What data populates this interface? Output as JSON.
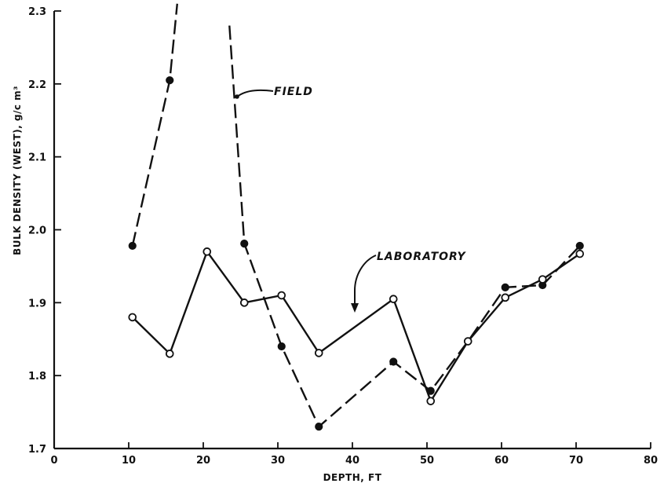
{
  "chart_data": {
    "type": "line",
    "xlabel": "DEPTH, FT",
    "ylabel": "BULK DENSITY (WEST), g/c m³",
    "xlim": [
      0,
      80
    ],
    "ylim": [
      1.7,
      2.3
    ],
    "xticks": [
      0,
      10,
      20,
      30,
      40,
      50,
      60,
      70,
      80
    ],
    "yticks": [
      1.7,
      1.8,
      1.9,
      2.0,
      2.1,
      2.2,
      2.3
    ],
    "grid": false,
    "series": [
      {
        "name": "FIELD",
        "line_style": "dashed",
        "marker": "filled-circle",
        "segments": [
          {
            "x": [
              10.5,
              15.5,
              16.5
            ],
            "y": [
              1.978,
              2.205,
              2.31
            ],
            "markers": [
              true,
              true,
              false
            ]
          },
          {
            "x": [
              23.5,
              25.5,
              30.5,
              35.5,
              45.5,
              50.5,
              55.5,
              60.5,
              65.5,
              70.5
            ],
            "y": [
              2.28,
              1.981,
              1.84,
              1.73,
              1.819,
              1.779,
              1.847,
              1.921,
              1.924,
              1.978
            ],
            "markers": [
              false,
              true,
              true,
              true,
              true,
              true,
              true,
              true,
              true,
              true
            ]
          }
        ]
      },
      {
        "name": "LABORATORY",
        "line_style": "solid",
        "marker": "open-circle",
        "segments": [
          {
            "x": [
              10.5,
              15.5,
              20.5,
              25.5,
              30.5,
              35.5,
              45.5,
              50.5,
              55.5,
              60.5,
              65.5,
              70.5
            ],
            "y": [
              1.88,
              1.83,
              1.97,
              1.9,
              1.91,
              1.831,
              1.905,
              1.765,
              1.847,
              1.907,
              1.932,
              1.967
            ],
            "markers": [
              true,
              true,
              true,
              true,
              true,
              true,
              true,
              true,
              true,
              true,
              true,
              true
            ]
          }
        ]
      }
    ],
    "annotations": [
      {
        "text": "FIELD",
        "points_to": "FIELD"
      },
      {
        "text": "LABORATORY",
        "points_to": "LABORATORY"
      }
    ]
  }
}
